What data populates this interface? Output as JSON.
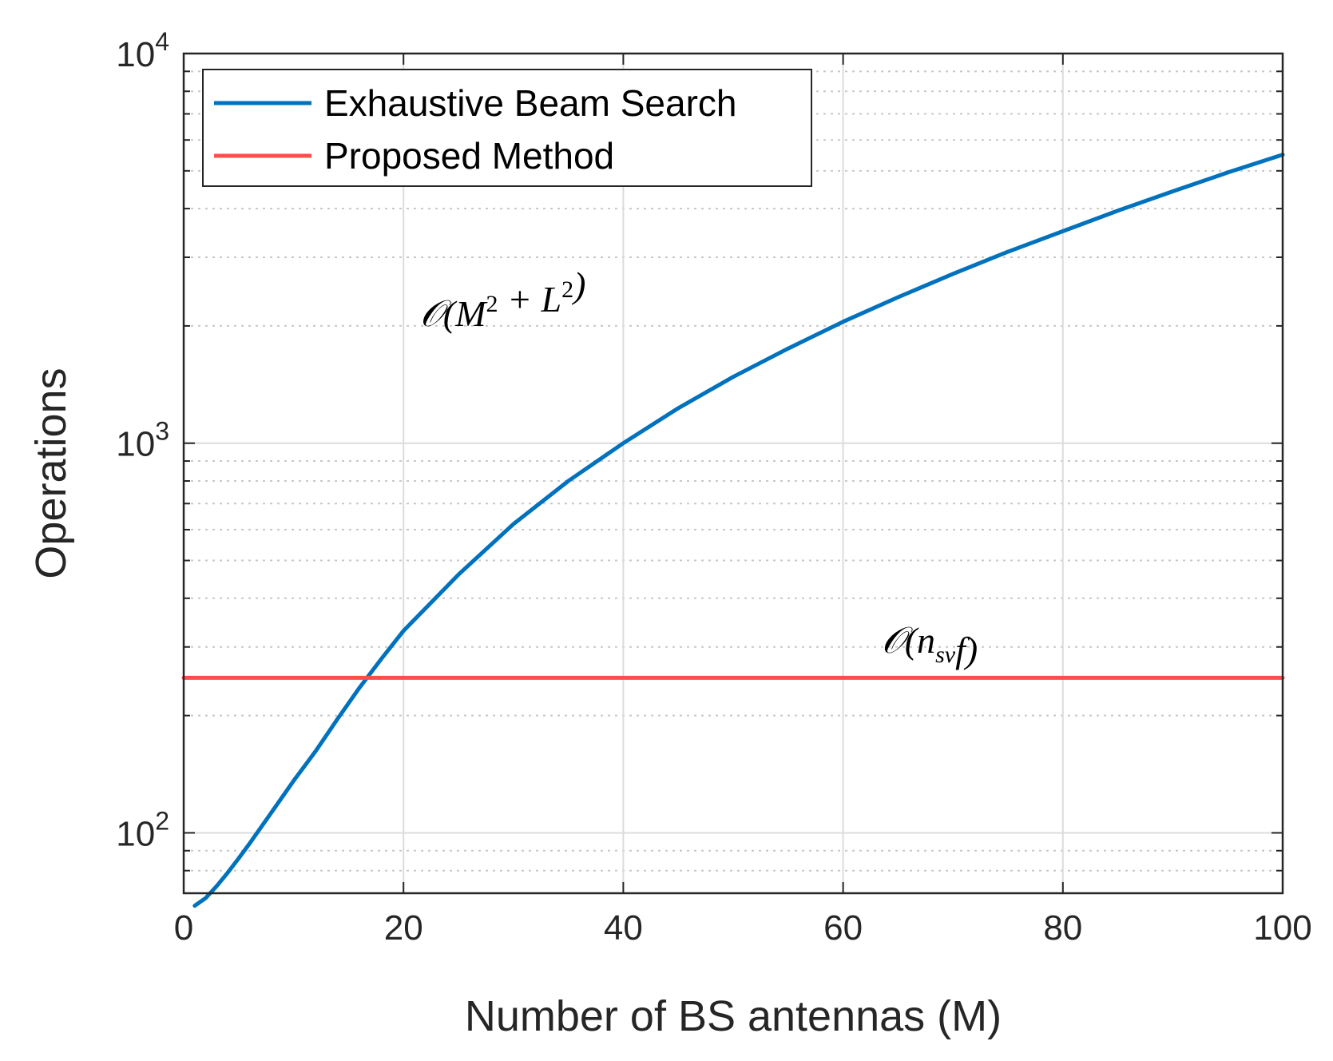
{
  "chart_data": {
    "type": "line",
    "xlabel": "Number of BS antennas (M)",
    "ylabel": "Operations",
    "xlim": [
      0,
      100
    ],
    "ylim": [
      70,
      10000
    ],
    "yscale": "log",
    "grid": true,
    "legend_position": "top-left",
    "x_ticks": [
      "0",
      "20",
      "40",
      "60",
      "80",
      "100"
    ],
    "y_ticks": [
      {
        "value": 100,
        "base": "10",
        "exp": "2"
      },
      {
        "value": 1000,
        "base": "10",
        "exp": "3"
      },
      {
        "value": 10000,
        "base": "10",
        "exp": "4"
      }
    ],
    "series": [
      {
        "name": "Exhaustive Beam Search",
        "color": "#0072BD",
        "x": [
          1,
          2,
          3,
          4,
          5,
          6,
          8,
          10,
          12,
          14,
          16,
          18,
          20,
          25,
          30,
          35,
          40,
          45,
          50,
          55,
          60,
          65,
          70,
          75,
          80,
          85,
          90,
          95,
          100
        ],
        "y": [
          65,
          68,
          73,
          79,
          86,
          94,
          113,
          136,
          162,
          196,
          236,
          280,
          330,
          460,
          620,
          800,
          1000,
          1230,
          1480,
          1750,
          2050,
          2370,
          2720,
          3100,
          3500,
          3950,
          4430,
          4950,
          5500
        ]
      },
      {
        "name": "Proposed Method",
        "color": "#FF4D4D",
        "x": [
          0,
          100
        ],
        "y": [
          250,
          250
        ]
      }
    ],
    "annotations": [
      {
        "text_parts": [
          {
            "t": "𝒪(M",
            "s": ""
          },
          {
            "t": "2",
            "s": "sup"
          },
          {
            "t": " + L",
            "s": ""
          },
          {
            "t": "2",
            "s": "sup"
          },
          {
            "t": ")",
            "s": ""
          }
        ],
        "x": 21.5,
        "y": 2000
      },
      {
        "text_parts": [
          {
            "t": "𝒪(n",
            "s": ""
          },
          {
            "t": "sv",
            "s": "sub"
          },
          {
            "t": "f)",
            "s": ""
          }
        ],
        "x": 63.5,
        "y": 290
      }
    ]
  }
}
